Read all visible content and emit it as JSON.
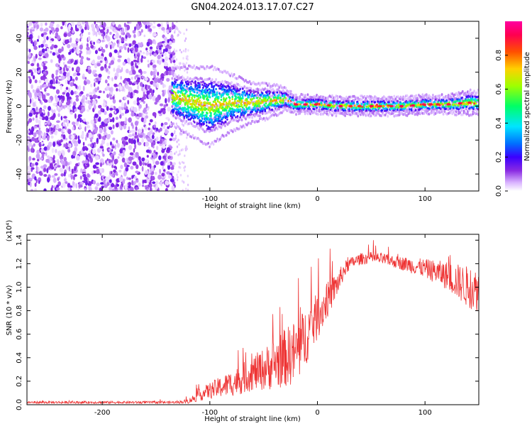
{
  "figure": {
    "title": "GN04.2024.013.17.07.C27"
  },
  "chart_data": [
    {
      "type": "heatmap",
      "name": "spectrogram",
      "xlabel": "Height of straight line (km)",
      "ylabel": "Frequency (Hz)",
      "xlim": [
        -270,
        150
      ],
      "ylim": [
        -50,
        50
      ],
      "xticks": [
        -200,
        -100,
        0,
        100
      ],
      "yticks": [
        -40,
        -20,
        0,
        20,
        40
      ],
      "colorbar": {
        "label": "Normalized spectral amplitude",
        "range": [
          0,
          1
        ],
        "ticks": [
          0.0,
          0.2,
          0.4,
          0.6,
          0.8
        ],
        "colormap": [
          "#ffffff",
          "#d9b3ff",
          "#8a2be2",
          "#3a00ff",
          "#0070ff",
          "#00e5ff",
          "#00ff66",
          "#a0ff00",
          "#ffd000",
          "#ff5000",
          "#ff0050",
          "#ff00a0"
        ]
      },
      "regions": [
        {
          "label": "noise",
          "x_range": [
            -270,
            -133
          ],
          "freq_range": [
            -50,
            50
          ],
          "amplitude": 0.15
        },
        {
          "label": "transition noise",
          "x_range": [
            -133,
            -120
          ],
          "freq_range": [
            -50,
            50
          ],
          "amplitude": 0.05
        },
        {
          "label": "signal band",
          "x_range": [
            -133,
            150
          ],
          "amplitude": 0.55
        }
      ],
      "ridge": {
        "x": [
          -135,
          -120,
          -100,
          -80,
          -60,
          -45,
          -30,
          -20,
          0,
          20,
          40,
          60,
          80,
          100,
          120,
          140,
          150
        ],
        "freq": [
          6,
          3,
          0,
          2,
          2,
          3,
          4,
          1,
          1,
          0,
          0,
          0,
          0,
          1,
          1,
          2,
          2
        ],
        "width": [
          10,
          12,
          14,
          10,
          7,
          6,
          4,
          3,
          3,
          3,
          3,
          3,
          3,
          3,
          3,
          4,
          4
        ]
      }
    },
    {
      "type": "line",
      "name": "snr",
      "xlabel": "Height of straight line (km)",
      "ylabel": "SNR (10 * v/v)",
      "multiplier": "(x10⁴)",
      "xlim": [
        -270,
        150
      ],
      "ylim": [
        0,
        1.45
      ],
      "xticks": [
        -200,
        -100,
        0,
        100
      ],
      "yticks": [
        0.0,
        0.2,
        0.4,
        0.6,
        0.8,
        1.0,
        1.2,
        1.4
      ],
      "color": "#ee3333",
      "series": [
        {
          "x": [
            -270,
            -200,
            -130,
            -120,
            -110,
            -100,
            -90,
            -80,
            -70,
            -60,
            -50,
            -40,
            -30,
            -20,
            -15,
            -10,
            0,
            10,
            20,
            25,
            30,
            40,
            50,
            60,
            70,
            80,
            90,
            100,
            110,
            120,
            130,
            140,
            150
          ],
          "y": [
            0.02,
            0.02,
            0.02,
            0.03,
            0.08,
            0.12,
            0.15,
            0.18,
            0.22,
            0.27,
            0.3,
            0.35,
            0.4,
            0.45,
            0.5,
            0.6,
            0.75,
            0.9,
            1.05,
            1.15,
            1.2,
            1.24,
            1.25,
            1.24,
            1.22,
            1.2,
            1.18,
            1.16,
            1.13,
            1.1,
            1.05,
            1.0,
            0.97
          ],
          "noise": [
            0.01,
            0.01,
            0.01,
            0.02,
            0.05,
            0.07,
            0.09,
            0.11,
            0.13,
            0.15,
            0.18,
            0.22,
            0.25,
            0.28,
            0.28,
            0.25,
            0.2,
            0.15,
            0.1,
            0.07,
            0.05,
            0.05,
            0.05,
            0.05,
            0.05,
            0.06,
            0.07,
            0.08,
            0.1,
            0.12,
            0.15,
            0.18,
            0.18
          ]
        }
      ]
    }
  ]
}
